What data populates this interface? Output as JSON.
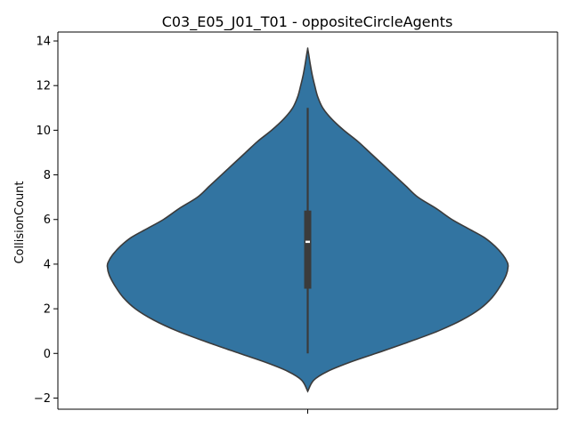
{
  "chart_data": {
    "type": "violin",
    "title": "C03_E05_J01_T01 - oppositeCircleAgents",
    "xlabel": "",
    "ylabel": "CollisionCount",
    "ylim": [
      -2.5,
      14.4
    ],
    "yticks": [
      -2,
      0,
      2,
      4,
      6,
      8,
      10,
      12,
      14
    ],
    "violin_color": "#3274a1",
    "edge_color": "#3b3b3b",
    "density_profile": {
      "y": [
        -1.7,
        -1.2,
        -0.8,
        -0.4,
        0.0,
        0.5,
        1.0,
        1.5,
        2.0,
        2.5,
        3.0,
        3.5,
        3.9,
        4.1,
        4.4,
        4.8,
        5.2,
        5.6,
        6.0,
        6.5,
        7.0,
        7.5,
        8.0,
        8.5,
        9.0,
        9.5,
        10.0,
        10.5,
        11.0,
        11.5,
        12.0,
        12.5,
        13.0,
        13.4,
        13.65
      ],
      "width": [
        0.0,
        0.03,
        0.1,
        0.21,
        0.34,
        0.5,
        0.65,
        0.77,
        0.86,
        0.92,
        0.96,
        0.99,
        1.0,
        0.995,
        0.975,
        0.935,
        0.88,
        0.8,
        0.72,
        0.64,
        0.55,
        0.49,
        0.43,
        0.37,
        0.31,
        0.25,
        0.18,
        0.12,
        0.075,
        0.05,
        0.035,
        0.022,
        0.012,
        0.005,
        0.0
      ]
    },
    "box": {
      "q1": 2.9,
      "median": 5.0,
      "q3": 6.4,
      "whisker_low": 0.0,
      "whisker_high": 11.0
    }
  }
}
